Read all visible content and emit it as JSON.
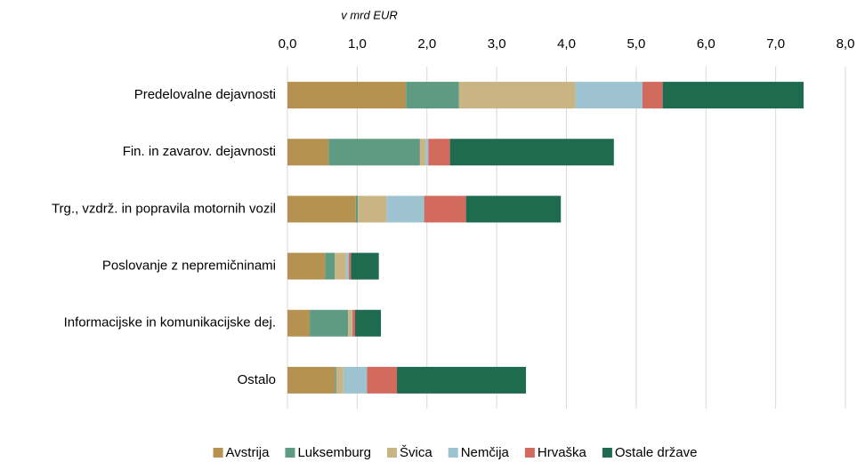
{
  "chart_data": {
    "type": "stacked-bar-horizontal",
    "axis_label": "v mrd EUR",
    "categories": [
      "Predelovalne dejavnosti",
      "Fin. in zavarov. dejavnosti",
      "Trg., vzdrž. in popravila motornih vozil",
      "Poslovanje z nepremičninami",
      "Informacijske in komunikacijske dej.",
      "Ostalo"
    ],
    "series": [
      {
        "name": "Avstrija",
        "color": "#b5924f",
        "values": [
          1.7,
          0.59,
          0.98,
          0.54,
          0.32,
          0.68
        ]
      },
      {
        "name": "Luksemburg",
        "color": "#5f9a82",
        "values": [
          0.76,
          1.31,
          0.03,
          0.14,
          0.55,
          0.02
        ]
      },
      {
        "name": "Švica",
        "color": "#c9b483",
        "values": [
          1.67,
          0.08,
          0.41,
          0.16,
          0.05,
          0.1
        ]
      },
      {
        "name": "Nemčija",
        "color": "#9dc3d1",
        "values": [
          0.96,
          0.04,
          0.54,
          0.04,
          0.01,
          0.34
        ]
      },
      {
        "name": "Hrvaška",
        "color": "#d26b5e",
        "values": [
          0.29,
          0.31,
          0.6,
          0.03,
          0.04,
          0.43
        ]
      },
      {
        "name": "Ostale države",
        "color": "#1e6b4f",
        "values": [
          2.02,
          2.35,
          1.36,
          0.4,
          0.37,
          1.85
        ]
      }
    ],
    "xlim": [
      0,
      8
    ],
    "xticks": [
      {
        "value": 0,
        "label": "0,0"
      },
      {
        "value": 1,
        "label": "1,0"
      },
      {
        "value": 2,
        "label": "2,0"
      },
      {
        "value": 3,
        "label": "3,0"
      },
      {
        "value": 4,
        "label": "4,0"
      },
      {
        "value": 5,
        "label": "5,0"
      },
      {
        "value": 6,
        "label": "6,0"
      },
      {
        "value": 7,
        "label": "7,0"
      },
      {
        "value": 8,
        "label": "8,0"
      }
    ],
    "grid": true,
    "legend": "bottom"
  }
}
